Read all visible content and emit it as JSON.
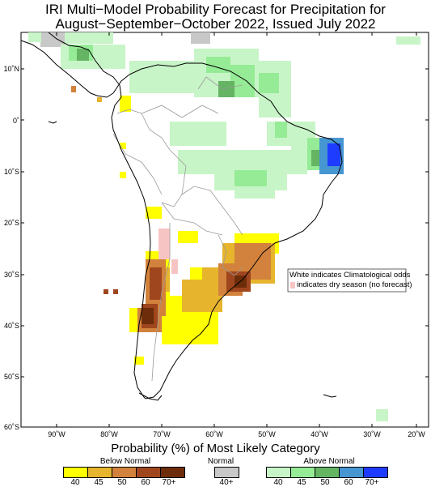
{
  "title": {
    "line1": "IRI Multi−Model Probability Forecast for Precipitation for",
    "line2": "August−September−October 2022, Issued July 2022"
  },
  "map": {
    "lat_labels": [
      "10˚N",
      "0˚",
      "10˚S",
      "20˚S",
      "30˚S",
      "40˚S",
      "50˚S",
      "60˚S"
    ],
    "lon_labels": [
      "90˚W",
      "80˚W",
      "70˚W",
      "60˚W",
      "50˚W",
      "40˚W",
      "30˚W",
      "20˚W"
    ],
    "notes": {
      "white": "White indicates Climatological odds",
      "dry": "indicates dry season (no forecast)"
    },
    "colors": {
      "land_outline": "#000000",
      "internal_border": "#9a9a9a",
      "dry_season": "#f7c4c4"
    }
  },
  "legend": {
    "title": "Probability (%) of Most Likely Category",
    "below": {
      "label": "Below Normal",
      "colors": [
        "#ffff00",
        "#e6b42d",
        "#d2823c",
        "#a0461e",
        "#6e2d0a"
      ],
      "ticks": [
        "40",
        "45",
        "50",
        "60",
        "70+"
      ]
    },
    "normal": {
      "label": "Normal",
      "colors": [
        "#c8c8c8"
      ],
      "ticks": [
        "40+"
      ]
    },
    "above": {
      "label": "Above Normal",
      "colors": [
        "#c8f5c8",
        "#96eb96",
        "#64b464",
        "#4696d2",
        "#1e3cff"
      ],
      "ticks": [
        "40",
        "45",
        "50",
        "60",
        "70+"
      ]
    }
  }
}
